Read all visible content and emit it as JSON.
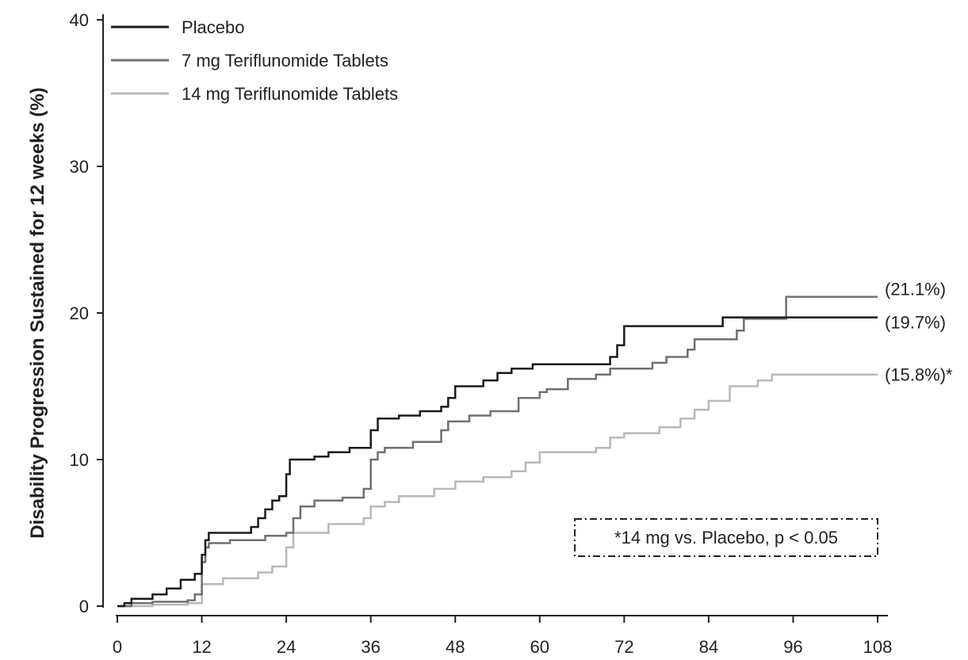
{
  "chart_data": {
    "type": "line",
    "step": true,
    "ylabel": "Disability Progression Sustained for 12 weeks (%)",
    "xlabel": "",
    "xlim": [
      0,
      108
    ],
    "ylim": [
      0,
      40
    ],
    "x_ticks": [
      0,
      12,
      24,
      36,
      48,
      60,
      72,
      84,
      96,
      108
    ],
    "y_ticks": [
      0,
      10,
      20,
      30,
      40
    ],
    "grid": false,
    "legend_position": "top-left",
    "series": [
      {
        "name": "Placebo",
        "color": "#1a1a1a",
        "end_label": "(19.7%)",
        "points": [
          [
            0,
            0
          ],
          [
            1,
            0.2
          ],
          [
            2,
            0.5
          ],
          [
            5,
            0.8
          ],
          [
            7,
            1.2
          ],
          [
            9,
            1.8
          ],
          [
            11,
            2.2
          ],
          [
            12,
            3.5
          ],
          [
            12.5,
            4.5
          ],
          [
            13,
            5.0
          ],
          [
            19,
            5.4
          ],
          [
            20,
            6.0
          ],
          [
            21,
            6.6
          ],
          [
            22,
            7.2
          ],
          [
            23,
            7.5
          ],
          [
            24,
            9.0
          ],
          [
            24.5,
            10.0
          ],
          [
            28,
            10.2
          ],
          [
            30,
            10.5
          ],
          [
            33,
            10.8
          ],
          [
            36,
            12.0
          ],
          [
            37,
            12.8
          ],
          [
            40,
            13.0
          ],
          [
            43,
            13.3
          ],
          [
            46,
            13.6
          ],
          [
            47,
            14.2
          ],
          [
            48,
            15.0
          ],
          [
            52,
            15.4
          ],
          [
            54,
            15.9
          ],
          [
            56,
            16.2
          ],
          [
            59,
            16.5
          ],
          [
            70,
            17.0
          ],
          [
            71,
            17.8
          ],
          [
            72,
            19.1
          ],
          [
            86,
            19.7
          ],
          [
            108,
            19.7
          ]
        ]
      },
      {
        "name": "7 mg Teriflunomide Tablets",
        "color": "#707070",
        "end_label": "(21.1%)",
        "points": [
          [
            0,
            0
          ],
          [
            2,
            0.2
          ],
          [
            5,
            0.3
          ],
          [
            10,
            0.4
          ],
          [
            11,
            0.8
          ],
          [
            12,
            3.0
          ],
          [
            12.5,
            4.0
          ],
          [
            13,
            4.3
          ],
          [
            16,
            4.5
          ],
          [
            21,
            4.8
          ],
          [
            24,
            5.0
          ],
          [
            25,
            6.0
          ],
          [
            26,
            6.8
          ],
          [
            28,
            7.2
          ],
          [
            32,
            7.4
          ],
          [
            35,
            8.0
          ],
          [
            36,
            10.0
          ],
          [
            37,
            10.5
          ],
          [
            38,
            10.8
          ],
          [
            42,
            11.2
          ],
          [
            46,
            12.0
          ],
          [
            47,
            12.6
          ],
          [
            50,
            13.0
          ],
          [
            53,
            13.3
          ],
          [
            57,
            14.2
          ],
          [
            60,
            14.6
          ],
          [
            61,
            14.8
          ],
          [
            64,
            15.5
          ],
          [
            68,
            15.8
          ],
          [
            70,
            16.2
          ],
          [
            76,
            16.6
          ],
          [
            78,
            17.0
          ],
          [
            81,
            17.5
          ],
          [
            82,
            18.2
          ],
          [
            88,
            18.8
          ],
          [
            89,
            19.6
          ],
          [
            95,
            21.1
          ],
          [
            108,
            21.1
          ]
        ]
      },
      {
        "name": "14 mg Teriflunomide Tablets",
        "color": "#b8b8b8",
        "end_label": "(15.8%)*",
        "points": [
          [
            0,
            0
          ],
          [
            5,
            0.1
          ],
          [
            10,
            0.2
          ],
          [
            12,
            1.5
          ],
          [
            15,
            1.9
          ],
          [
            20,
            2.3
          ],
          [
            22,
            2.7
          ],
          [
            24,
            4.0
          ],
          [
            25,
            5.0
          ],
          [
            30,
            5.6
          ],
          [
            35,
            6.0
          ],
          [
            36,
            6.8
          ],
          [
            38,
            7.1
          ],
          [
            40,
            7.5
          ],
          [
            45,
            8.0
          ],
          [
            48,
            8.5
          ],
          [
            52,
            8.8
          ],
          [
            56,
            9.2
          ],
          [
            58,
            9.8
          ],
          [
            60,
            10.5
          ],
          [
            68,
            10.8
          ],
          [
            70,
            11.5
          ],
          [
            72,
            11.8
          ],
          [
            77,
            12.2
          ],
          [
            80,
            12.8
          ],
          [
            82,
            13.4
          ],
          [
            84,
            14.0
          ],
          [
            87,
            15.0
          ],
          [
            91,
            15.4
          ],
          [
            93,
            15.8
          ],
          [
            108,
            15.8
          ]
        ]
      }
    ],
    "annotation": "*14 mg vs. Placebo, p < 0.05"
  }
}
